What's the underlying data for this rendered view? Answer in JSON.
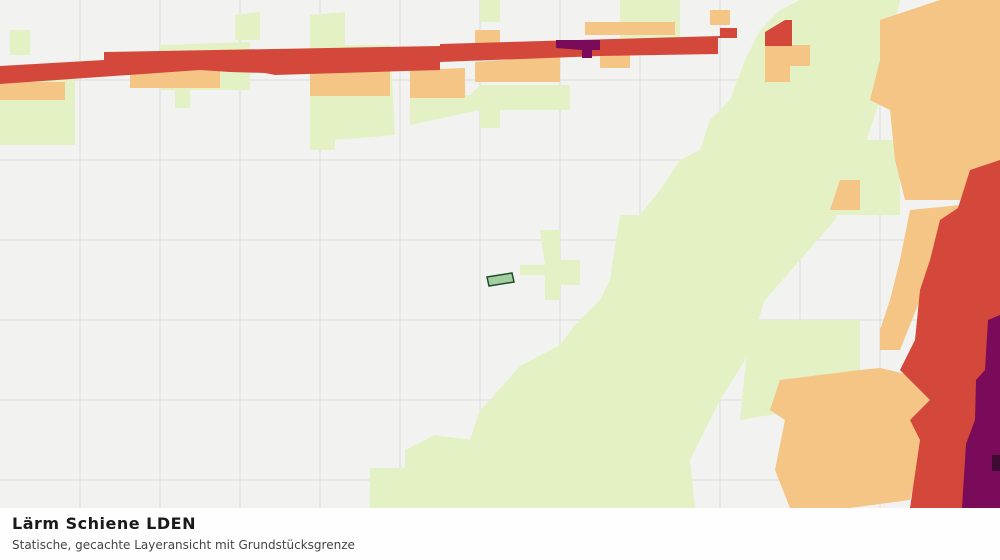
{
  "panel": {
    "title": "Lärm Schiene LDEN",
    "subtitle": "Statische, gecachte Layeransicht mit Grundstücksgrenze"
  }
}
